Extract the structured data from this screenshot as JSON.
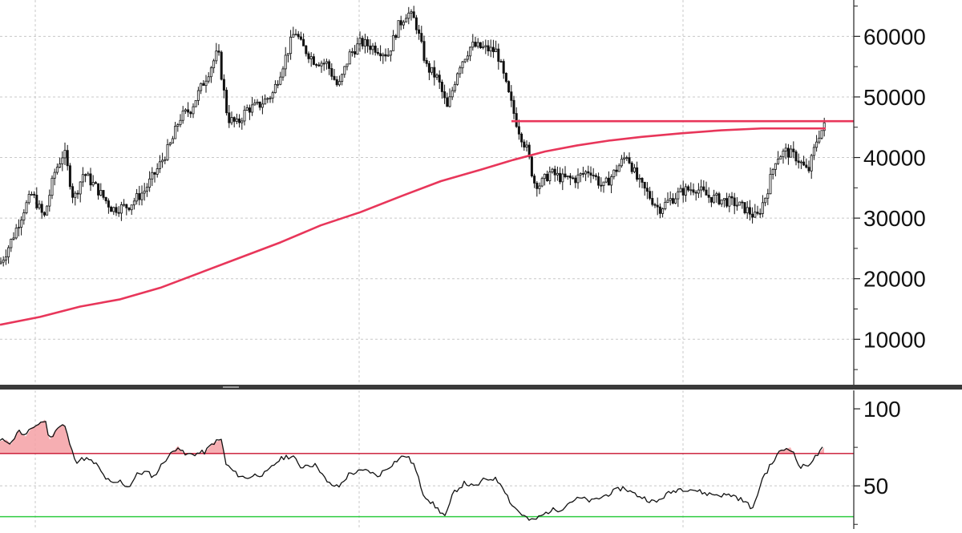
{
  "chart_data": [
    {
      "type": "candlestick",
      "panel": "price",
      "title": "",
      "ylim": [
        2500,
        66000
      ],
      "yticks": [
        10000,
        20000,
        30000,
        40000,
        50000,
        60000
      ],
      "grid": true,
      "candle_color": "#111111",
      "price_path": [
        [
          0,
          22500
        ],
        [
          8,
          24500
        ],
        [
          18,
          27500
        ],
        [
          30,
          31500
        ],
        [
          40,
          34000
        ],
        [
          55,
          30000
        ],
        [
          68,
          37500
        ],
        [
          80,
          41000
        ],
        [
          92,
          33000
        ],
        [
          104,
          37500
        ],
        [
          120,
          35000
        ],
        [
          140,
          31500
        ],
        [
          160,
          32000
        ],
        [
          180,
          34500
        ],
        [
          196,
          38000
        ],
        [
          214,
          42500
        ],
        [
          224,
          46500
        ],
        [
          238,
          48000
        ],
        [
          256,
          53000
        ],
        [
          272,
          57500
        ],
        [
          284,
          46500
        ],
        [
          296,
          45500
        ],
        [
          308,
          48000
        ],
        [
          322,
          48500
        ],
        [
          340,
          50500
        ],
        [
          356,
          56500
        ],
        [
          368,
          61000
        ],
        [
          376,
          58500
        ],
        [
          392,
          56000
        ],
        [
          408,
          55500
        ],
        [
          422,
          51500
        ],
        [
          436,
          57000
        ],
        [
          450,
          59000
        ],
        [
          470,
          58000
        ],
        [
          484,
          57000
        ],
        [
          496,
          61500
        ],
        [
          508,
          64000
        ],
        [
          518,
          62500
        ],
        [
          532,
          55000
        ],
        [
          546,
          53000
        ],
        [
          558,
          48000
        ],
        [
          572,
          55000
        ],
        [
          588,
          58500
        ],
        [
          604,
          58000
        ],
        [
          620,
          57500
        ],
        [
          632,
          51500
        ],
        [
          646,
          45000
        ],
        [
          658,
          41000
        ],
        [
          666,
          36000
        ],
        [
          674,
          35500
        ],
        [
          686,
          37500
        ],
        [
          702,
          36500
        ],
        [
          718,
          36500
        ],
        [
          736,
          38000
        ],
        [
          752,
          35000
        ],
        [
          766,
          37500
        ],
        [
          782,
          40500
        ],
        [
          796,
          36000
        ],
        [
          808,
          34000
        ],
        [
          822,
          31500
        ],
        [
          836,
          33000
        ],
        [
          852,
          34500
        ],
        [
          868,
          35000
        ],
        [
          884,
          33500
        ],
        [
          900,
          33000
        ],
        [
          916,
          32500
        ],
        [
          930,
          31500
        ],
        [
          944,
          30000
        ],
        [
          956,
          34000
        ],
        [
          968,
          40000
        ],
        [
          980,
          41000
        ],
        [
          994,
          40000
        ],
        [
          1008,
          37500
        ],
        [
          1020,
          43500
        ],
        [
          1030,
          45500
        ]
      ],
      "series": [
        {
          "name": "",
          "type": "moving-average",
          "color": "#e8365a",
          "values": [
            [
              0,
              12400
            ],
            [
              50,
              13700
            ],
            [
              100,
              15400
            ],
            [
              150,
              16600
            ],
            [
              200,
              18500
            ],
            [
              250,
              21000
            ],
            [
              300,
              23500
            ],
            [
              350,
              26000
            ],
            [
              400,
              28800
            ],
            [
              450,
              31000
            ],
            [
              500,
              33600
            ],
            [
              550,
              36100
            ],
            [
              600,
              38000
            ],
            [
              640,
              39600
            ],
            [
              680,
              41000
            ],
            [
              720,
              42000
            ],
            [
              760,
              42800
            ],
            [
              800,
              43400
            ],
            [
              850,
              44000
            ],
            [
              900,
              44500
            ],
            [
              950,
              44800
            ],
            [
              1000,
              44800
            ],
            [
              1030,
              44800
            ]
          ]
        },
        {
          "name": "",
          "type": "horizontal-level",
          "color": "#e8365a",
          "x_start": 638,
          "x_end": 1065,
          "value": 46000
        }
      ]
    },
    {
      "type": "line",
      "panel": "rsi",
      "title": "",
      "ylim": [
        22,
        112
      ],
      "yticks": [
        50,
        100
      ],
      "grid": true,
      "upper_level": 71,
      "lower_level": 30,
      "upper_color": "#c8102e",
      "lower_color": "#2ecc40",
      "overbought_fill": "#f4a0a4",
      "line_color": "#111111",
      "series": [
        {
          "name": "",
          "values": [
            [
              0,
              79
            ],
            [
              8,
              80
            ],
            [
              14,
              77
            ],
            [
              22,
              86
            ],
            [
              32,
              82
            ],
            [
              40,
              88
            ],
            [
              48,
              90
            ],
            [
              56,
              93
            ],
            [
              62,
              80
            ],
            [
              70,
              87
            ],
            [
              80,
              90
            ],
            [
              90,
              72
            ],
            [
              96,
              66
            ],
            [
              106,
              68
            ],
            [
              120,
              64
            ],
            [
              130,
              56
            ],
            [
              140,
              51
            ],
            [
              150,
              53
            ],
            [
              160,
              49
            ],
            [
              172,
              58
            ],
            [
              182,
              59
            ],
            [
              192,
              56
            ],
            [
              206,
              67
            ],
            [
              214,
              71
            ],
            [
              222,
              76
            ],
            [
              230,
              70
            ],
            [
              246,
              71
            ],
            [
              256,
              72
            ],
            [
              266,
              78
            ],
            [
              276,
              80
            ],
            [
              282,
              64
            ],
            [
              294,
              58
            ],
            [
              306,
              55
            ],
            [
              318,
              57
            ],
            [
              332,
              58
            ],
            [
              346,
              66
            ],
            [
              356,
              69
            ],
            [
              366,
              69
            ],
            [
              374,
              62
            ],
            [
              384,
              64
            ],
            [
              396,
              63
            ],
            [
              408,
              52
            ],
            [
              422,
              49
            ],
            [
              436,
              58
            ],
            [
              446,
              59
            ],
            [
              460,
              60
            ],
            [
              470,
              56
            ],
            [
              484,
              62
            ],
            [
              496,
              67
            ],
            [
              506,
              70
            ],
            [
              516,
              64
            ],
            [
              528,
              45
            ],
            [
              542,
              37
            ],
            [
              556,
              30
            ],
            [
              566,
              46
            ],
            [
              580,
              52
            ],
            [
              592,
              49
            ],
            [
              604,
              54
            ],
            [
              616,
              55
            ],
            [
              626,
              51
            ],
            [
              638,
              38
            ],
            [
              650,
              32
            ],
            [
              662,
              27
            ],
            [
              674,
              30
            ],
            [
              686,
              34
            ],
            [
              700,
              35
            ],
            [
              712,
              40
            ],
            [
              724,
              42
            ],
            [
              738,
              40
            ],
            [
              752,
              43
            ],
            [
              764,
              46
            ],
            [
              778,
              49
            ],
            [
              790,
              45
            ],
            [
              804,
              42
            ],
            [
              818,
              39
            ],
            [
              830,
              44
            ],
            [
              846,
              48
            ],
            [
              862,
              48
            ],
            [
              880,
              45
            ],
            [
              900,
              44
            ],
            [
              914,
              44
            ],
            [
              928,
              40
            ],
            [
              940,
              35
            ],
            [
              950,
              54
            ],
            [
              962,
              64
            ],
            [
              974,
              73
            ],
            [
              986,
              75
            ],
            [
              998,
              62
            ],
            [
              1006,
              63
            ],
            [
              1016,
              68
            ],
            [
              1028,
              75
            ]
          ]
        }
      ]
    }
  ]
}
